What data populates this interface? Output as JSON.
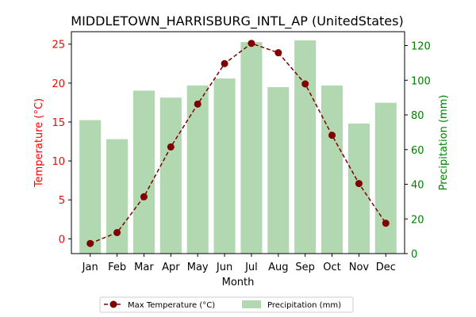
{
  "chart_data": {
    "type": "bar+line",
    "title": "MIDDLETOWN_HARRISBURG_INTL_AP (UnitedStates)",
    "xlabel": "Month",
    "ylabel_left": "Temperature (°C)",
    "ylabel_right": "Precipitation (mm)",
    "categories": [
      "Jan",
      "Feb",
      "Mar",
      "Apr",
      "May",
      "Jun",
      "Jul",
      "Aug",
      "Sep",
      "Oct",
      "Nov",
      "Dec"
    ],
    "series": [
      {
        "name": "Max Temperature (°C)",
        "type": "line",
        "axis": "left",
        "color": "#800000",
        "values": [
          -0.6,
          0.8,
          5.4,
          11.8,
          17.3,
          22.5,
          25.1,
          23.9,
          19.9,
          13.3,
          7.1,
          2.0
        ]
      },
      {
        "name": "Precipitation (mm)",
        "type": "bar",
        "axis": "right",
        "color": "#b2d8b2",
        "values": [
          77,
          66,
          94,
          90,
          97,
          101,
          122,
          96,
          123,
          97,
          75,
          87
        ]
      }
    ],
    "ylim_left": [
      -1.9,
      26.6
    ],
    "ylim_right": [
      0,
      128
    ],
    "yticks_left": [
      0,
      5,
      10,
      15,
      20,
      25
    ],
    "yticks_right": [
      0,
      20,
      40,
      60,
      80,
      100,
      120
    ],
    "left_axis_color": "#ff0000",
    "right_axis_color": "#008000",
    "legend_position": "bottom-center",
    "grid": false
  }
}
